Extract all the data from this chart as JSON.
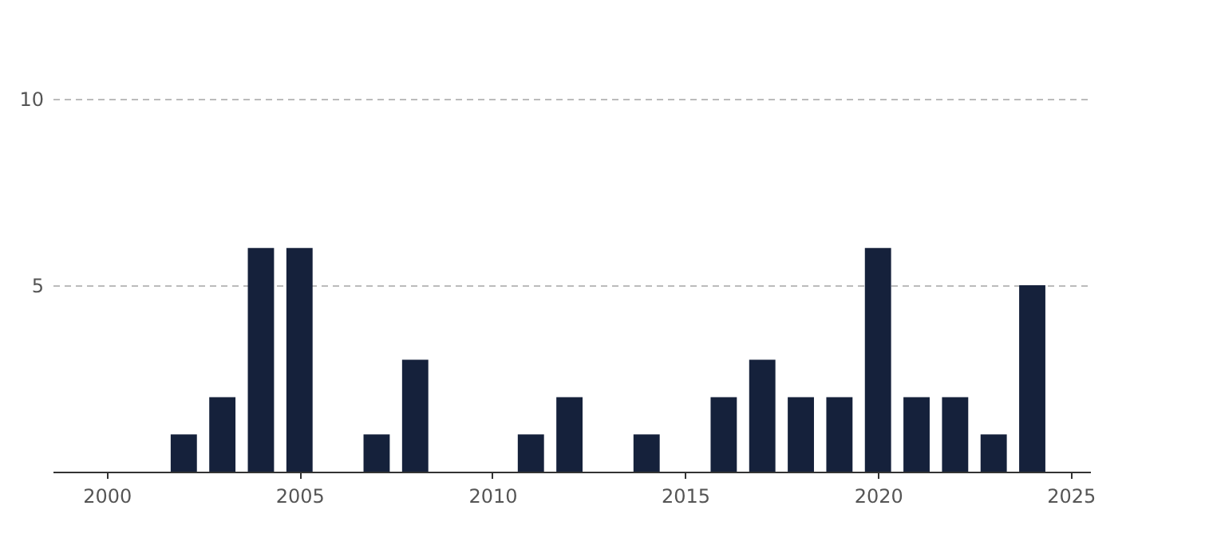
{
  "chart_data": {
    "type": "bar",
    "x": [
      2002,
      2003,
      2004,
      2005,
      2007,
      2008,
      2011,
      2012,
      2014,
      2016,
      2017,
      2018,
      2019,
      2020,
      2021,
      2022,
      2023,
      2024
    ],
    "values": [
      1,
      2,
      6,
      6,
      1,
      3,
      1,
      2,
      1,
      2,
      3,
      2,
      2,
      6,
      2,
      2,
      1,
      5
    ],
    "color": "#15213b",
    "xlim": [
      1998.6,
      2025.5
    ],
    "xticks": [
      2000,
      2005,
      2010,
      2015,
      2020,
      2025
    ],
    "ylim": [
      0,
      10
    ],
    "yticks": [
      5,
      10
    ],
    "grid": "y",
    "legend": false
  }
}
